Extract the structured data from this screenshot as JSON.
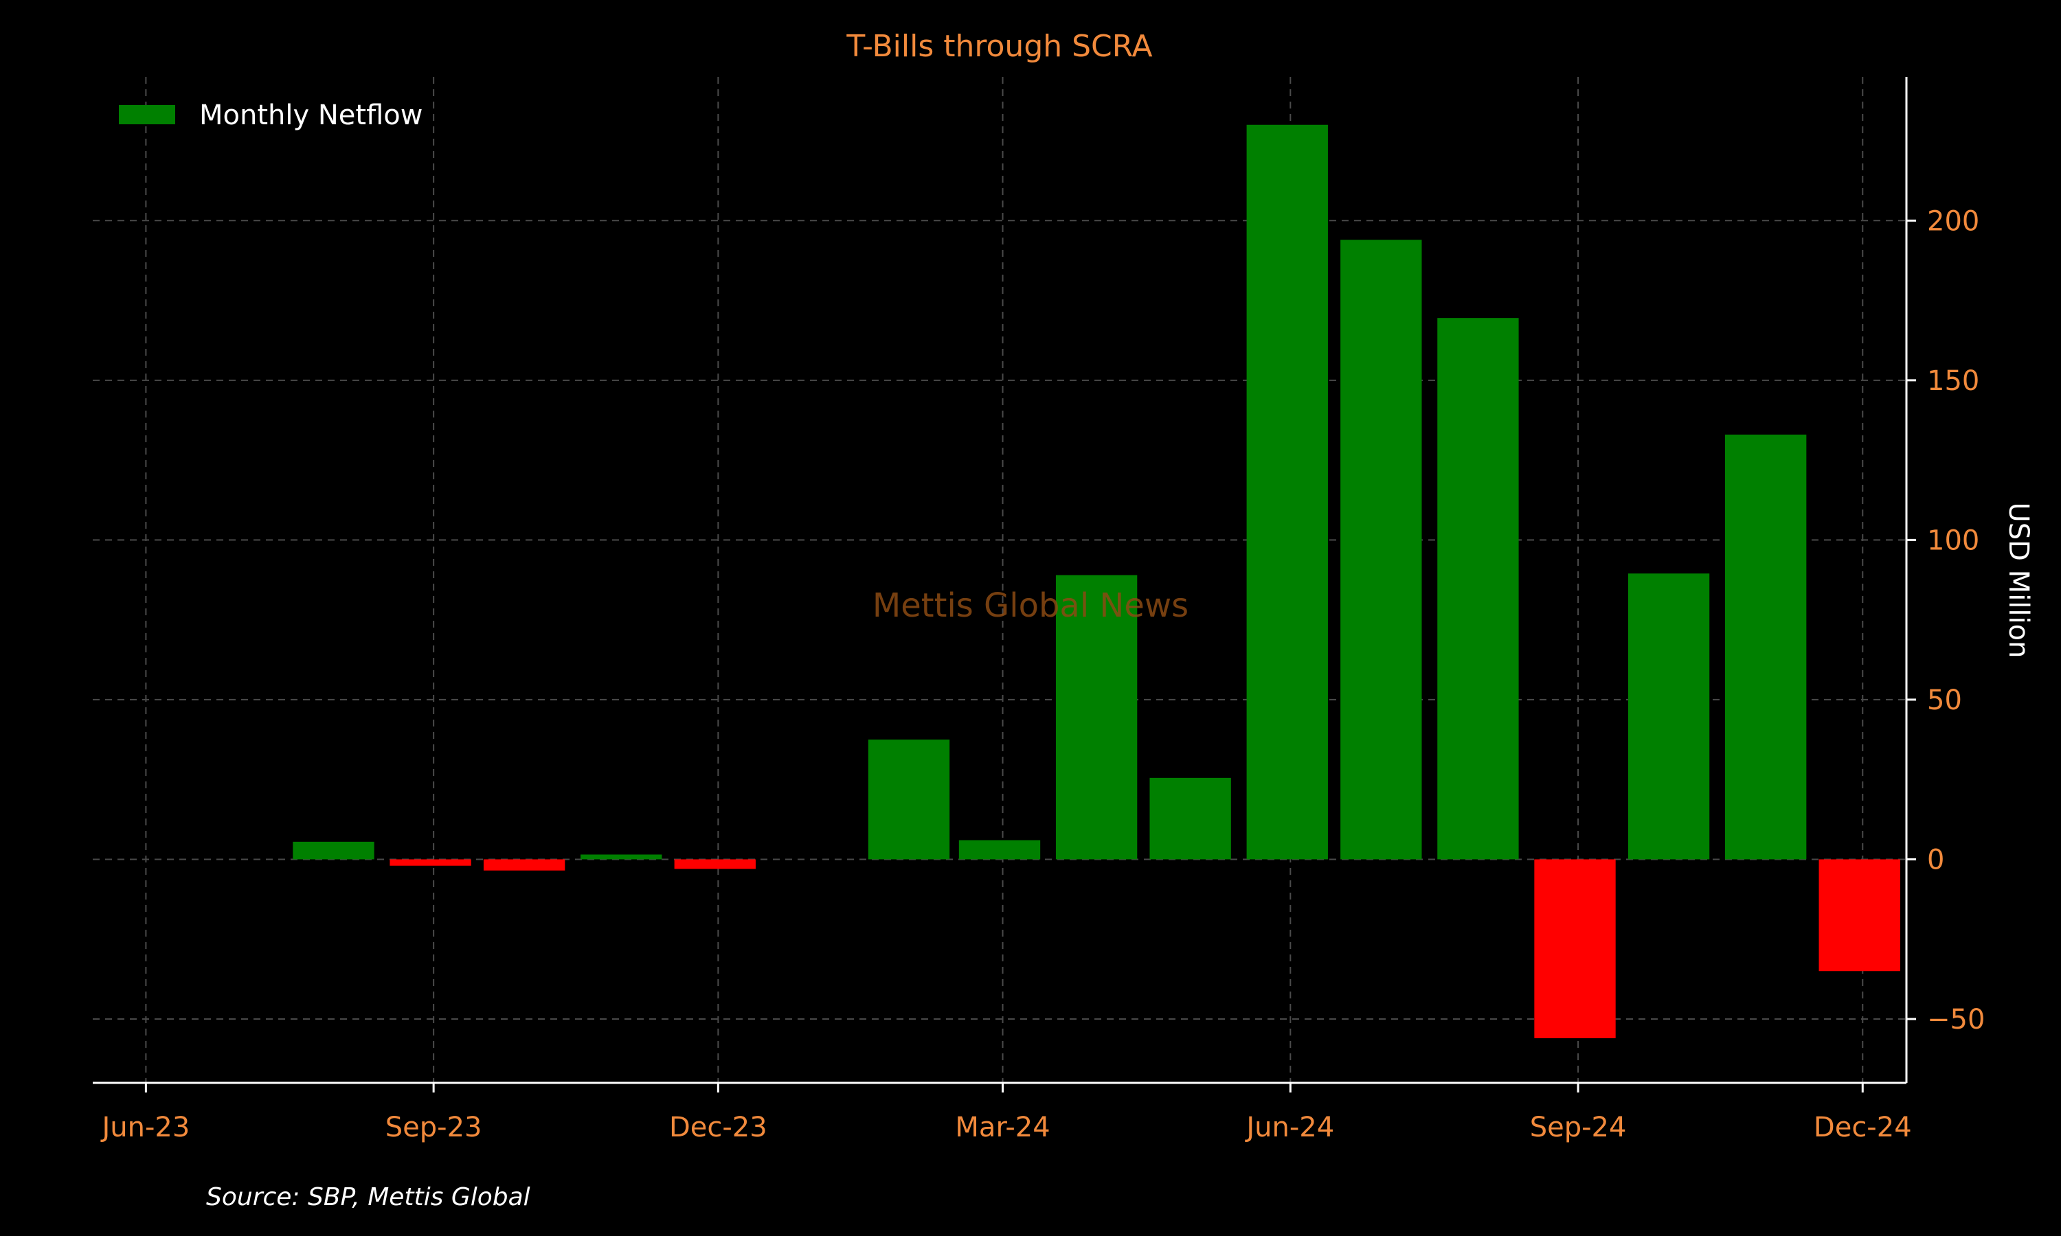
{
  "chart_data": {
    "type": "bar",
    "title": "T-Bills through SCRA",
    "ylabel": "USD Million",
    "xlabel": "",
    "legend": {
      "label": "Monthly Netflow",
      "placement": "top-left"
    },
    "watermark": "Mettis Global News",
    "source": "Source: SBP, Mettis Global",
    "grid": true,
    "y_axis_side": "right",
    "xlim": [
      "2023-05-15",
      "2024-12-15"
    ],
    "ylim": [
      -70,
      245
    ],
    "x_ticks": [
      {
        "date": "2023-06-01",
        "label": "Jun-23"
      },
      {
        "date": "2023-09-01",
        "label": "Sep-23"
      },
      {
        "date": "2023-12-01",
        "label": "Dec-23"
      },
      {
        "date": "2024-03-01",
        "label": "Mar-24"
      },
      {
        "date": "2024-06-01",
        "label": "Jun-24"
      },
      {
        "date": "2024-09-01",
        "label": "Sep-24"
      },
      {
        "date": "2024-12-01",
        "label": "Dec-24"
      }
    ],
    "y_ticks": [
      {
        "value": -50,
        "label": "−50"
      },
      {
        "value": 0,
        "label": "0"
      },
      {
        "value": 50,
        "label": "50"
      },
      {
        "value": 100,
        "label": "100"
      },
      {
        "value": 150,
        "label": "150"
      },
      {
        "value": 200,
        "label": "200"
      }
    ],
    "colors": {
      "positive": "#008000",
      "negative": "#ff0000"
    },
    "bars": [
      {
        "date": "2023-07-31",
        "value": 5.5
      },
      {
        "date": "2023-08-31",
        "value": -2
      },
      {
        "date": "2023-09-30",
        "value": -3.5
      },
      {
        "date": "2023-10-31",
        "value": 1.5
      },
      {
        "date": "2023-11-30",
        "value": -3
      },
      {
        "date": "2023-12-31",
        "value": 0
      },
      {
        "date": "2024-01-31",
        "value": 37.5
      },
      {
        "date": "2024-02-29",
        "value": 6
      },
      {
        "date": "2024-03-31",
        "value": 89
      },
      {
        "date": "2024-04-30",
        "value": 25.5
      },
      {
        "date": "2024-05-31",
        "value": 230
      },
      {
        "date": "2024-06-30",
        "value": 194
      },
      {
        "date": "2024-07-31",
        "value": 169.5
      },
      {
        "date": "2024-08-31",
        "value": -56
      },
      {
        "date": "2024-09-30",
        "value": 89.5
      },
      {
        "date": "2024-10-31",
        "value": 133
      },
      {
        "date": "2024-11-30",
        "value": -35
      }
    ]
  }
}
